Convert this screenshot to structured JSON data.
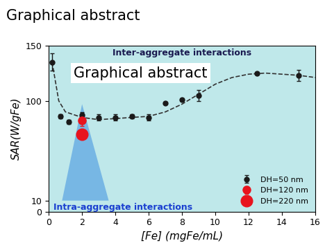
{
  "chart_data": {
    "type": "scatter",
    "title": "Graphical abstract",
    "x_label": "[Fe] (mgFe/mL)",
    "y_label": "SAR(W/gFe)",
    "xlim": [
      0,
      16
    ],
    "xticks": [
      0,
      2,
      4,
      6,
      8,
      10,
      12,
      14,
      16
    ],
    "ylim": [
      0,
      150
    ],
    "yticks": [
      0,
      10,
      100,
      150
    ],
    "annotations": [
      "Inter-aggregate interactions",
      "Graphical abstract",
      "Intra-aggregate interactions"
    ],
    "legend": "lower right",
    "series": [
      {
        "name": "DH=50 nm",
        "color": "#1a1a1a",
        "marker": "circle",
        "x": [
          0.2,
          0.7,
          1.2,
          2,
          3,
          4,
          5,
          6,
          7,
          8,
          9,
          12.5,
          15
        ],
        "values": [
          135,
          86,
          81,
          87,
          85,
          85,
          86,
          85,
          98,
          101,
          105,
          125,
          123
        ],
        "error": [
          8,
          2,
          2,
          3,
          3,
          3,
          2,
          3,
          1,
          1,
          5,
          1,
          5
        ]
      },
      {
        "name": "DH=120 nm",
        "color": "#e8141e",
        "marker": "circle",
        "x": [
          2
        ],
        "values": [
          82
        ],
        "error": [
          5
        ]
      },
      {
        "name": "DH=220 nm",
        "color": "#e8141e",
        "marker": "circle",
        "x": [
          2
        ],
        "values": [
          70
        ]
      },
      {
        "type": "line",
        "line_style": "dashed",
        "color": "#333333",
        "x": [
          0.2,
          0.6,
          1,
          2,
          3,
          4,
          5,
          6,
          7,
          8,
          9,
          10,
          11,
          12,
          13,
          14,
          15,
          16
        ],
        "values": [
          135,
          100,
          90,
          85,
          83,
          84,
          85,
          86,
          90,
          97,
          106,
          115,
          121,
          124,
          125,
          124,
          123,
          121
        ]
      }
    ]
  }
}
